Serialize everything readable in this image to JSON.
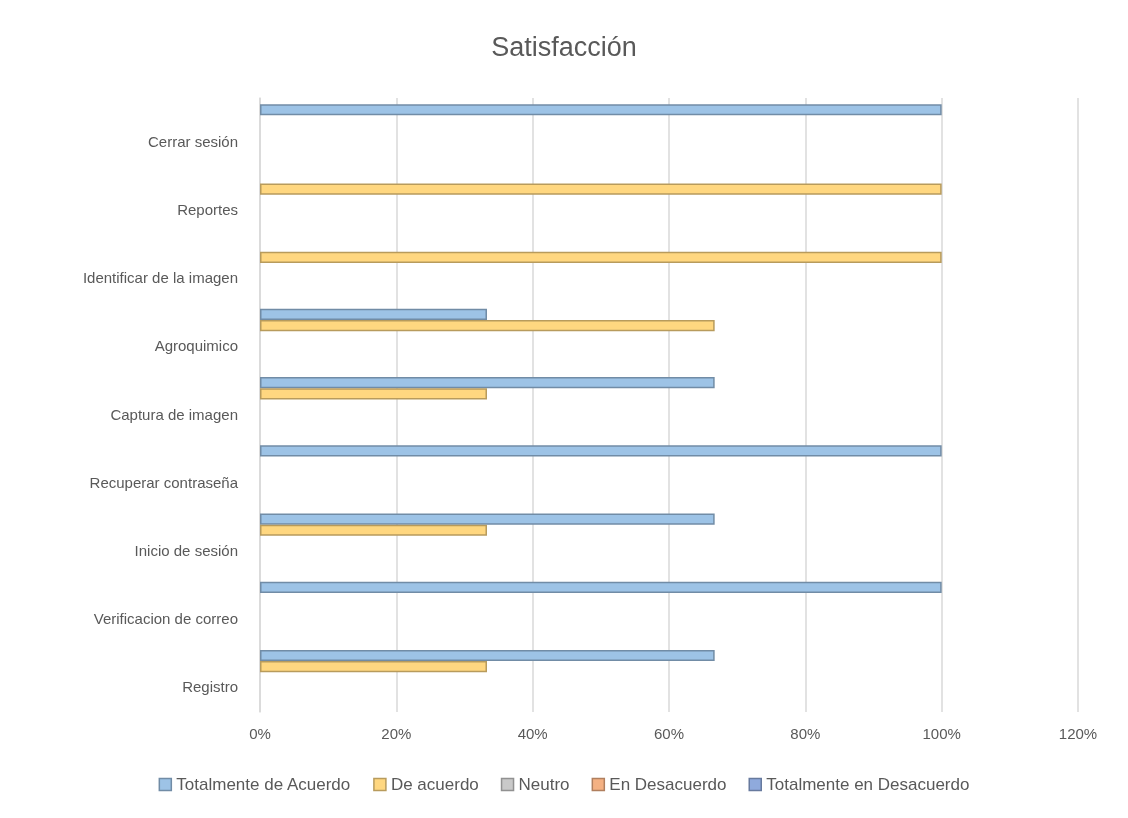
{
  "chart_data": {
    "type": "bar",
    "orientation": "horizontal",
    "title": "Satisfacción",
    "categories": [
      "Cerrar sesión",
      "Reportes",
      "Identificar de la imagen",
      "Agroquimico",
      "Captura de imagen",
      "Recuperar contraseña",
      "Inicio de sesión",
      "Verificacion de correo",
      "Registro"
    ],
    "series": [
      {
        "name": "Totalmente de Acuerdo",
        "color": "#9dc3e6",
        "values": [
          100,
          0,
          0,
          33.3,
          66.7,
          100,
          66.7,
          100,
          66.7
        ]
      },
      {
        "name": "De acuerdo",
        "color": "#ffd780",
        "values": [
          0,
          100,
          100,
          66.7,
          33.3,
          0,
          33.3,
          0,
          33.3
        ]
      },
      {
        "name": "Neutro",
        "color": "#c9c9c9",
        "values": [
          0,
          0,
          0,
          0,
          0,
          0,
          0,
          0,
          0
        ]
      },
      {
        "name": "En Desacuerdo",
        "color": "#f4b183",
        "values": [
          0,
          0,
          0,
          0,
          0,
          0,
          0,
          0,
          0
        ]
      },
      {
        "name": "Totalmente en Desacuerdo",
        "color": "#8faadc",
        "values": [
          0,
          0,
          0,
          0,
          0,
          0,
          0,
          0,
          0
        ]
      }
    ],
    "xlim": [
      0,
      120
    ],
    "xticks": [
      {
        "value": 0,
        "label": "0%"
      },
      {
        "value": 20,
        "label": "20%"
      },
      {
        "value": 40,
        "label": "40%"
      },
      {
        "value": 60,
        "label": "60%"
      },
      {
        "value": 80,
        "label": "80%"
      },
      {
        "value": 100,
        "label": "100%"
      },
      {
        "value": 120,
        "label": "120%"
      }
    ],
    "grid": "x",
    "legend": "bottom"
  }
}
